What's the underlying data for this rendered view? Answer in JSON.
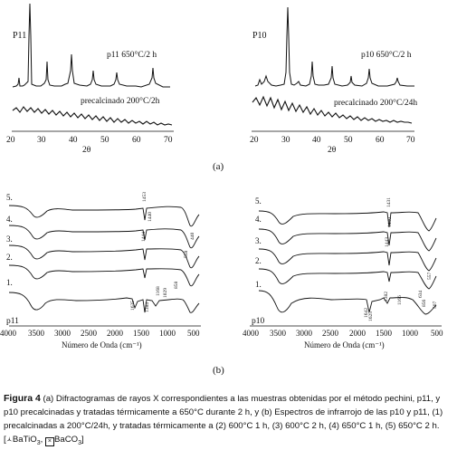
{
  "panel_a": {
    "label": "(a)",
    "left": {
      "sample": "P11",
      "top_trace_label": "p11 650°C/2 h",
      "bottom_trace_label": "precalcinado 200°C/2h",
      "x_ticks": [
        "20",
        "30",
        "40",
        "50",
        "60",
        "70"
      ],
      "x_axis_label": "2θ"
    },
    "right": {
      "sample": "P10",
      "top_trace_label": "p10 650°C/2 h",
      "bottom_trace_label": "precalcinado 200°C/24h",
      "x_ticks": [
        "20",
        "30",
        "40",
        "50",
        "60",
        "70"
      ],
      "x_axis_label": "2θ"
    }
  },
  "panel_b": {
    "label": "(b)",
    "left": {
      "sample": "p11",
      "curve_numbers": [
        "5.",
        "4.",
        "3.",
        "2.",
        "1."
      ],
      "x_ticks": [
        "4000",
        "3500",
        "3000",
        "2500",
        "2000",
        "1500",
        "1000",
        "500"
      ],
      "x_axis_label": "Número de Onda (cm⁻¹)",
      "peak_labels": [
        "1453",
        "1440",
        "1444",
        "1635",
        "1384",
        "1168",
        "1029",
        "858",
        "558",
        "440"
      ]
    },
    "right": {
      "sample": "p10",
      "curve_numbers": [
        "5.",
        "4.",
        "3.",
        "2.",
        "1."
      ],
      "x_ticks": [
        "4000",
        "3500",
        "3000",
        "2500",
        "2000",
        "1500",
        "1000",
        "500"
      ],
      "x_axis_label": "Número de Onda (cm⁻¹)",
      "peak_labels": [
        "1431",
        "1440",
        "1443",
        "1642",
        "1625",
        "1382",
        "1166",
        "634",
        "856",
        "557",
        "507"
      ]
    }
  },
  "caption": {
    "figure_label": "Figura 4",
    "text_1": " (a) Difractogramas de rayos X correspondientes a las muestras obtenidas por el método pechini, p11, y p10 precalcinadas y tratadas térmicamente a 650°C durante 2 h, y (b) Espectros de infrarrojo de las p10 y p11, (1) precalcinadas a 200°C/24h, y tratadas térmicamente a (2) 600°C 1 h, (3) 600°C 2 h, (4) 650°C 1 h, (5) 650°C 2 h. [",
    "legend_1": "BaTiO",
    "legend_1_sub": "3",
    "legend_2": "BaCO",
    "legend_2_sub": "3",
    "text_end": "]"
  }
}
